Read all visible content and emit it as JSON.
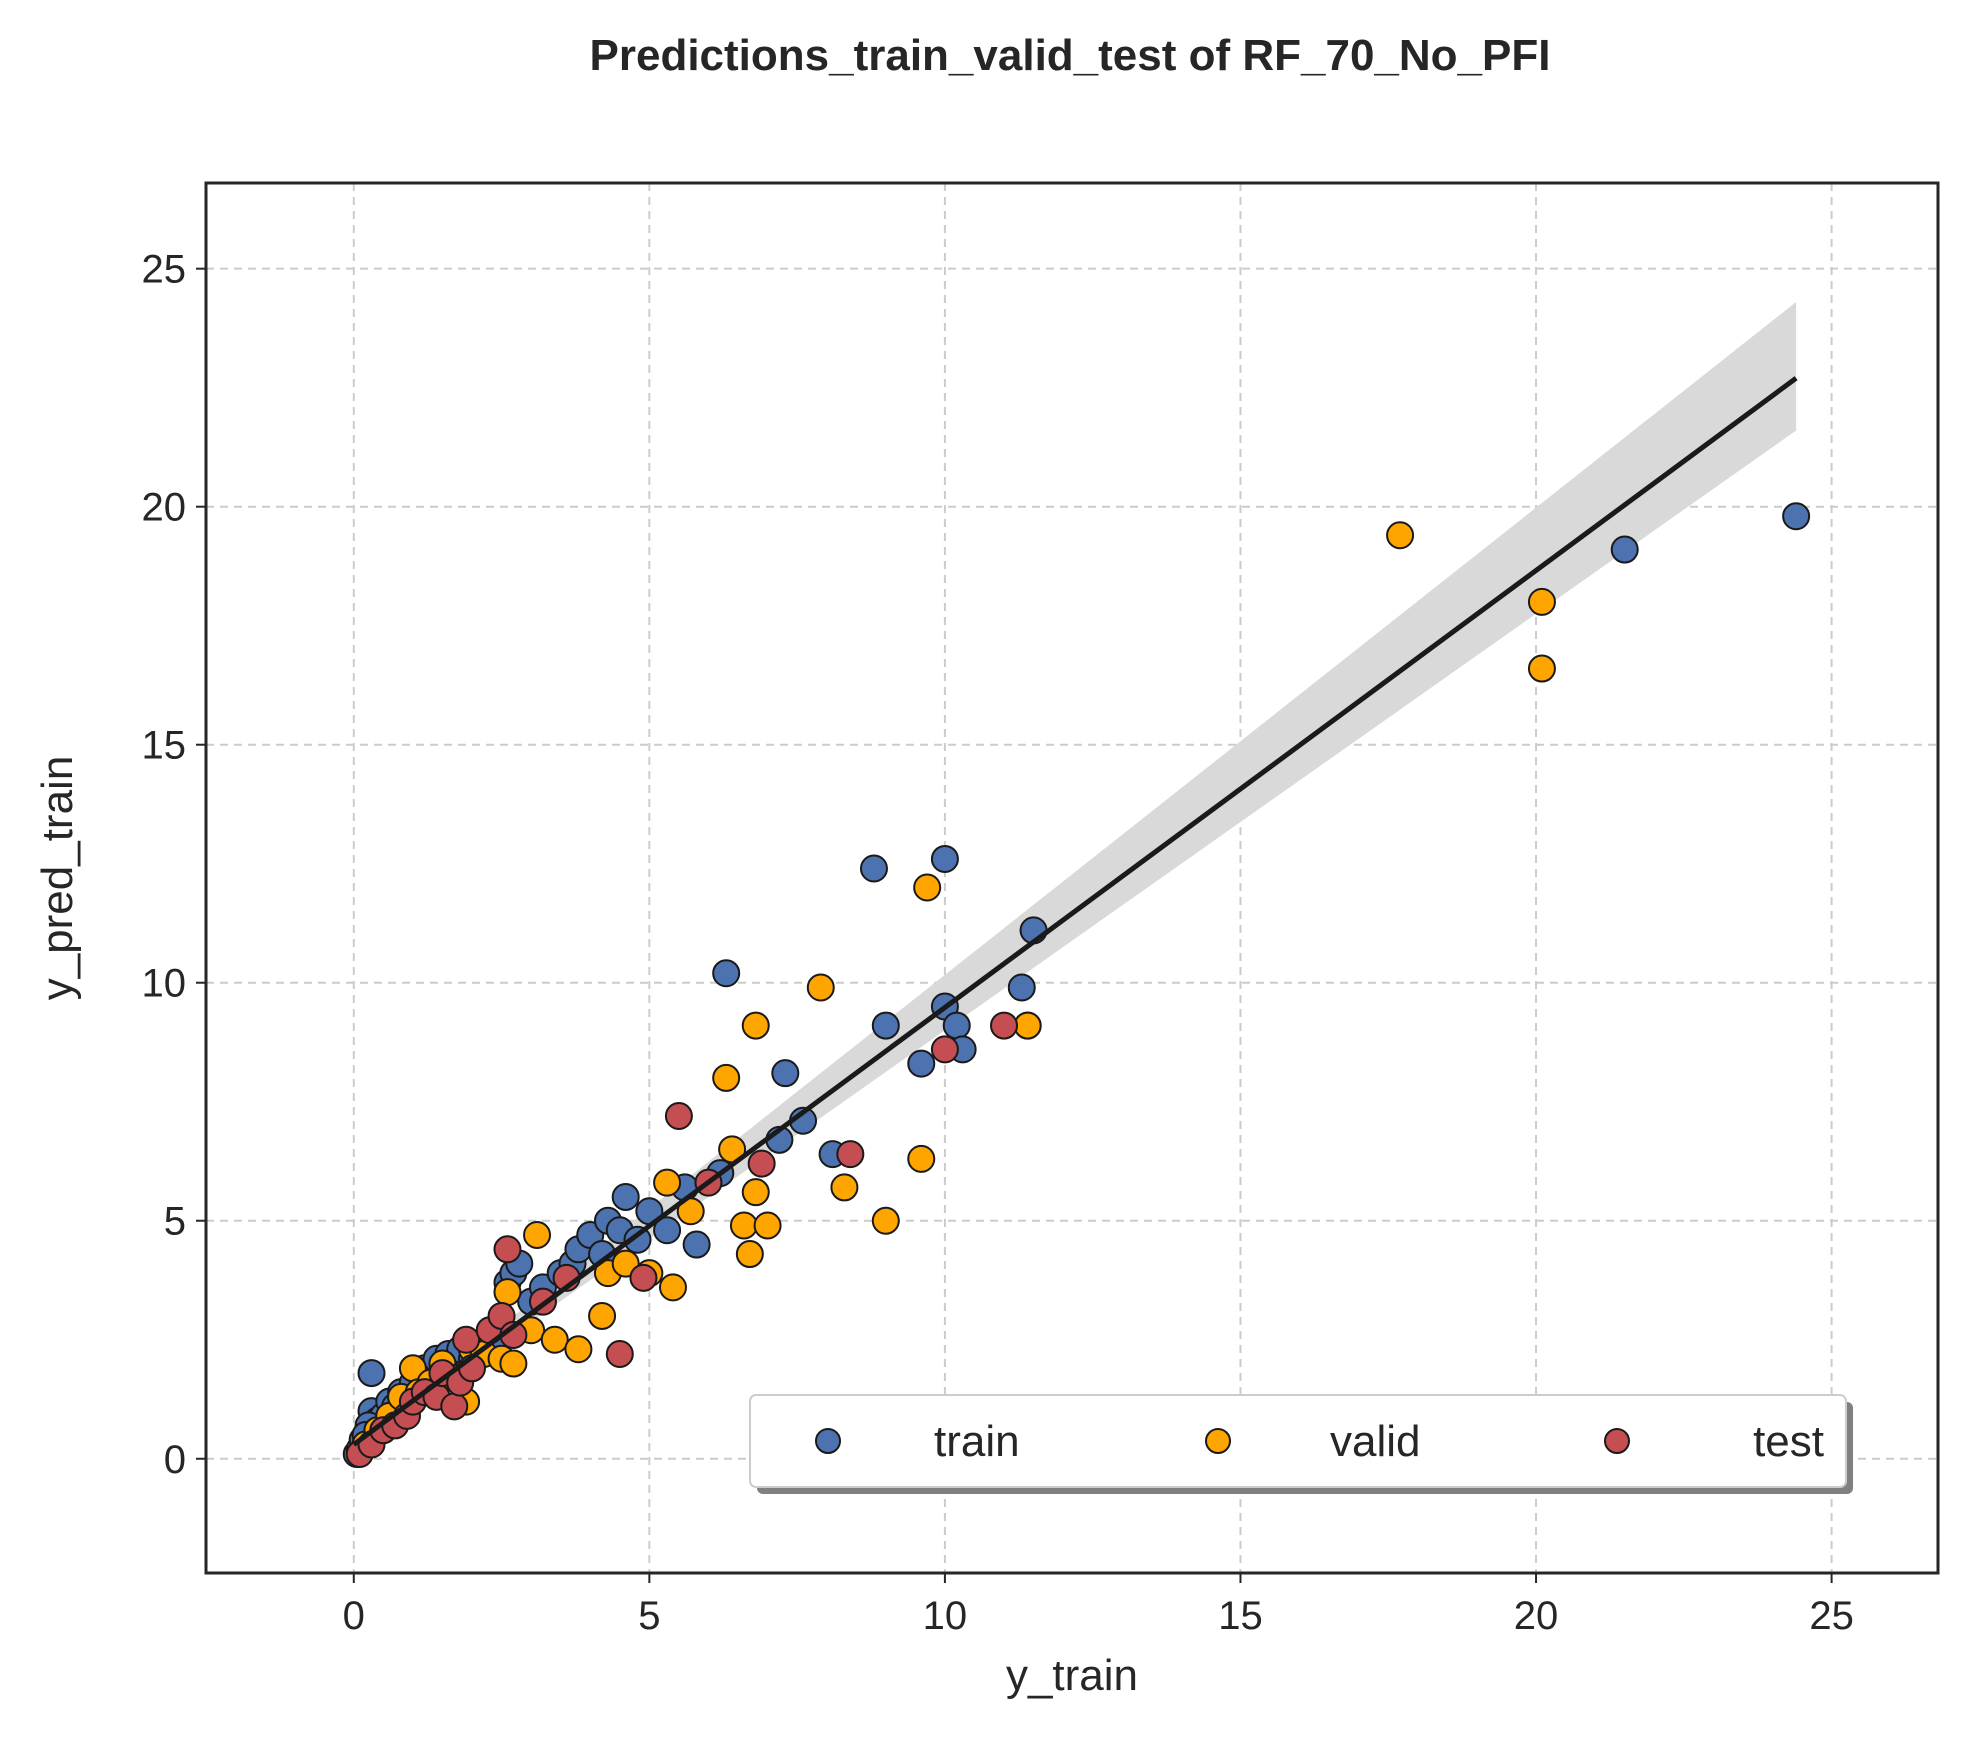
{
  "chart_data": {
    "type": "scatter",
    "title": "Predictions_train_valid_test of RF_70_No_PFI",
    "xlabel": "y_train",
    "ylabel": "y_pred_train",
    "xlim": [
      -2.5,
      26.8
    ],
    "ylim": [
      -2.4,
      26.8
    ],
    "xticks": [
      "0",
      "5",
      "10",
      "15",
      "20",
      "25"
    ],
    "yticks": [
      "0",
      "5",
      "10",
      "15",
      "20",
      "25"
    ],
    "grid": true,
    "legend_position": "lower-right",
    "colors": {
      "train": "#4c72b0",
      "valid": "#ffa500",
      "test": "#c44e52",
      "fit_line": "#1a1a1a",
      "confidence_band": "#d9d9d9"
    },
    "regression_line": {
      "x": [
        0,
        24.4
      ],
      "y": [
        0.3,
        22.7
      ],
      "band_lower_end": 21.6,
      "band_upper_end": 24.3
    },
    "series": [
      {
        "name": "train",
        "x": [
          0.05,
          0.1,
          0.15,
          0.2,
          0.25,
          0.3,
          0.35,
          0.4,
          0.5,
          0.6,
          0.7,
          0.8,
          1.0,
          1.2,
          1.4,
          1.6,
          1.8,
          2.0,
          2.2,
          2.4,
          2.6,
          2.7,
          2.8,
          3.0,
          3.2,
          3.5,
          3.7,
          3.8,
          4.0,
          4.2,
          4.3,
          4.5,
          4.6,
          4.8,
          5.0,
          5.3,
          5.6,
          5.8,
          6.2,
          6.3,
          7.2,
          7.3,
          7.6,
          8.1,
          8.8,
          9.0,
          9.6,
          10.0,
          10.0,
          10.2,
          10.3,
          11.3,
          11.5,
          21.5,
          24.4,
          0.3,
          0.25,
          0.2
        ],
        "y": [
          0.1,
          0.2,
          0.4,
          0.3,
          0.5,
          1.0,
          0.6,
          0.8,
          0.9,
          1.2,
          1.1,
          1.4,
          1.6,
          1.9,
          2.1,
          2.2,
          2.3,
          2.1,
          2.3,
          2.4,
          3.7,
          3.9,
          4.1,
          3.3,
          3.6,
          3.9,
          4.1,
          4.4,
          4.7,
          4.3,
          5.0,
          4.8,
          5.5,
          4.6,
          5.2,
          4.8,
          5.7,
          4.5,
          6.0,
          10.2,
          6.7,
          8.1,
          7.1,
          6.4,
          12.4,
          9.1,
          8.3,
          9.5,
          12.6,
          9.1,
          8.6,
          9.9,
          11.1,
          19.1,
          19.8,
          1.8,
          0.7,
          0.5
        ]
      },
      {
        "name": "valid",
        "x": [
          0.2,
          0.4,
          0.6,
          0.8,
          1.0,
          1.1,
          1.3,
          1.5,
          1.7,
          1.9,
          2.0,
          2.2,
          2.5,
          2.6,
          2.7,
          3.0,
          3.1,
          3.4,
          3.8,
          4.2,
          4.3,
          4.6,
          5.0,
          5.3,
          5.4,
          5.7,
          6.3,
          6.4,
          6.6,
          6.7,
          6.8,
          6.8,
          7.0,
          7.9,
          8.3,
          9.0,
          9.6,
          9.7,
          11.4,
          11.4,
          17.7,
          20.1,
          20.1
        ],
        "y": [
          0.3,
          0.6,
          0.9,
          1.3,
          1.9,
          1.4,
          1.6,
          2.0,
          1.7,
          1.2,
          2.3,
          2.2,
          2.1,
          3.5,
          2.0,
          2.7,
          4.7,
          2.5,
          2.3,
          3.0,
          3.9,
          4.1,
          3.9,
          5.8,
          3.6,
          5.2,
          8.0,
          6.5,
          4.9,
          4.3,
          9.1,
          5.6,
          4.9,
          9.9,
          5.7,
          5.0,
          6.3,
          12.0,
          9.1,
          9.1,
          19.4,
          18.0,
          16.6
        ],
        "x_note": ""
      },
      {
        "name": "test",
        "x": [
          0.1,
          0.3,
          0.5,
          0.7,
          0.9,
          1.0,
          1.2,
          1.4,
          1.5,
          1.7,
          1.8,
          1.9,
          2.0,
          2.3,
          2.5,
          2.6,
          2.7,
          3.2,
          3.6,
          4.5,
          4.9,
          5.5,
          6.0,
          6.9,
          8.4,
          10.0,
          11.0
        ],
        "y": [
          0.1,
          0.3,
          0.6,
          0.7,
          0.9,
          1.2,
          1.4,
          1.3,
          1.8,
          1.1,
          1.6,
          2.5,
          1.9,
          2.7,
          3.0,
          4.4,
          2.6,
          3.3,
          3.8,
          2.2,
          3.8,
          7.2,
          5.8,
          6.2,
          6.4,
          8.6,
          9.1
        ]
      }
    ]
  }
}
